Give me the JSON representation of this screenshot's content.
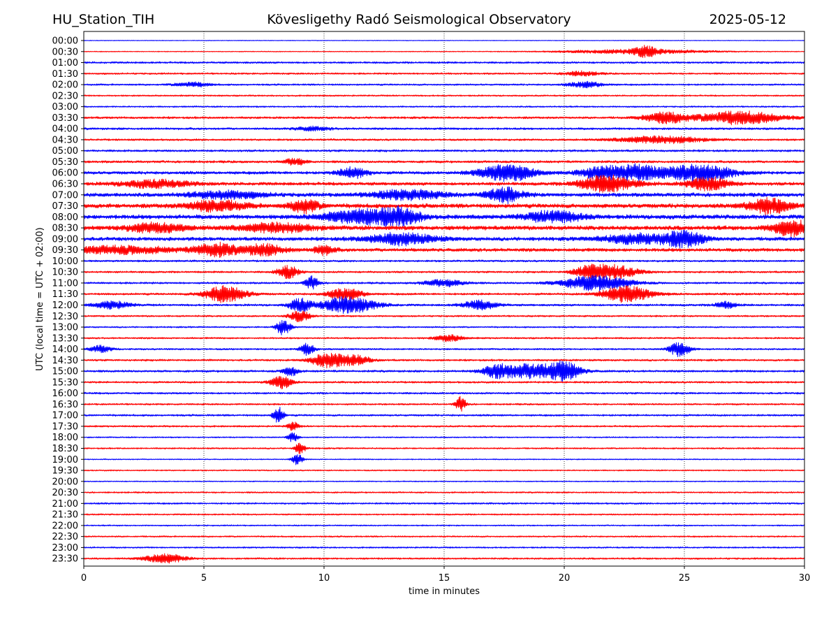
{
  "header": {
    "station": "HU_Station_TIH",
    "observatory": "Kövesligethy Radó Seismological Observatory",
    "date": "2025-05-12"
  },
  "chart_data": {
    "type": "line",
    "title": "Kövesligethy Radó Seismological Observatory",
    "xlabel": "time in minutes",
    "ylabel": "UTC (local time = UTC + 02:00)",
    "xlim": [
      0,
      30
    ],
    "x_ticks": [
      "0",
      "5",
      "10",
      "15",
      "20",
      "25",
      "30"
    ],
    "grid": "vertical dotted lines at each x tick",
    "colors": {
      "even_rows": "#0000ff",
      "odd_rows": "#ff0000"
    },
    "rows": [
      {
        "label": "00:00",
        "color": "blue",
        "noise": 0.15,
        "events": []
      },
      {
        "label": "00:30",
        "color": "red",
        "noise": 0.2,
        "events": [
          [
            23.4,
            2.5,
            0.3
          ],
          [
            23.0,
            1.2,
            2.0
          ]
        ]
      },
      {
        "label": "01:00",
        "color": "blue",
        "noise": 0.45,
        "events": []
      },
      {
        "label": "01:30",
        "color": "red",
        "noise": 0.4,
        "events": [
          [
            20.7,
            1.2,
            0.5
          ]
        ]
      },
      {
        "label": "02:00",
        "color": "blue",
        "noise": 0.4,
        "events": [
          [
            20.9,
            1.5,
            0.5
          ],
          [
            4.5,
            1.2,
            0.5
          ]
        ]
      },
      {
        "label": "02:30",
        "color": "red",
        "noise": 0.35,
        "events": []
      },
      {
        "label": "03:00",
        "color": "blue",
        "noise": 0.35,
        "events": []
      },
      {
        "label": "03:30",
        "color": "red",
        "noise": 0.5,
        "events": [
          [
            24.2,
            3.0,
            0.6
          ],
          [
            27.3,
            3.5,
            1.2
          ]
        ]
      },
      {
        "label": "04:00",
        "color": "blue",
        "noise": 0.5,
        "events": [
          [
            9.5,
            1.0,
            0.5
          ]
        ]
      },
      {
        "label": "04:30",
        "color": "red",
        "noise": 0.45,
        "events": [
          [
            24.0,
            2.0,
            1.2
          ]
        ]
      },
      {
        "label": "05:00",
        "color": "blue",
        "noise": 0.5,
        "events": []
      },
      {
        "label": "05:30",
        "color": "red",
        "noise": 0.55,
        "events": [
          [
            8.8,
            1.8,
            0.3
          ]
        ]
      },
      {
        "label": "06:00",
        "color": "blue",
        "noise": 0.7,
        "events": [
          [
            17.6,
            4.5,
            0.8
          ],
          [
            23.0,
            4.0,
            0.7
          ],
          [
            25.6,
            4.5,
            1.0
          ],
          [
            11.2,
            3.0,
            0.4
          ],
          [
            21.5,
            3.0,
            0.6
          ]
        ]
      },
      {
        "label": "06:30",
        "color": "red",
        "noise": 0.75,
        "events": [
          [
            21.8,
            4.5,
            0.8
          ],
          [
            26.0,
            3.5,
            0.6
          ],
          [
            3.0,
            2.0,
            1.0
          ]
        ]
      },
      {
        "label": "07:00",
        "color": "blue",
        "noise": 0.9,
        "events": [
          [
            17.5,
            4.0,
            0.5
          ],
          [
            13.5,
            2.5,
            1.0
          ],
          [
            6.0,
            2.0,
            1.0
          ]
        ]
      },
      {
        "label": "07:30",
        "color": "red",
        "noise": 1.0,
        "events": [
          [
            5.5,
            3.0,
            0.8
          ],
          [
            9.2,
            3.5,
            0.4
          ],
          [
            28.5,
            4.0,
            0.6
          ]
        ]
      },
      {
        "label": "08:00",
        "color": "blue",
        "noise": 1.0,
        "events": [
          [
            11.5,
            3.5,
            1.0
          ],
          [
            13.2,
            4.0,
            0.6
          ],
          [
            19.6,
            3.0,
            0.8
          ]
        ]
      },
      {
        "label": "08:30",
        "color": "red",
        "noise": 1.0,
        "events": [
          [
            29.5,
            4.0,
            0.6
          ],
          [
            3.0,
            2.5,
            0.8
          ],
          [
            8.0,
            2.5,
            1.0
          ]
        ]
      },
      {
        "label": "09:00",
        "color": "blue",
        "noise": 0.85,
        "events": [
          [
            25.0,
            4.0,
            0.6
          ],
          [
            13.2,
            3.0,
            1.0
          ],
          [
            23.0,
            2.5,
            1.0
          ]
        ]
      },
      {
        "label": "09:30",
        "color": "red",
        "noise": 0.8,
        "events": [
          [
            5.5,
            3.5,
            0.6
          ],
          [
            7.5,
            3.0,
            0.6
          ],
          [
            10.0,
            2.5,
            0.3
          ],
          [
            1.5,
            2.0,
            1.5
          ]
        ]
      },
      {
        "label": "10:00",
        "color": "blue",
        "noise": 0.45,
        "events": []
      },
      {
        "label": "10:30",
        "color": "red",
        "noise": 0.45,
        "events": [
          [
            8.5,
            3.5,
            0.3
          ],
          [
            22.0,
            4.0,
            0.7
          ],
          [
            20.9,
            2.5,
            0.4
          ]
        ]
      },
      {
        "label": "11:00",
        "color": "blue",
        "noise": 0.45,
        "events": [
          [
            9.5,
            3.5,
            0.2
          ],
          [
            21.3,
            4.0,
            1.0
          ],
          [
            15.0,
            1.8,
            0.6
          ]
        ]
      },
      {
        "label": "11:30",
        "color": "red",
        "noise": 0.5,
        "events": [
          [
            5.9,
            4.5,
            0.6
          ],
          [
            10.9,
            3.0,
            0.5
          ],
          [
            22.6,
            4.5,
            0.7
          ]
        ]
      },
      {
        "label": "12:00",
        "color": "blue",
        "noise": 0.5,
        "events": [
          [
            11.0,
            4.5,
            0.8
          ],
          [
            9.0,
            3.5,
            0.3
          ],
          [
            16.5,
            2.5,
            0.5
          ],
          [
            1.2,
            2.0,
            0.5
          ],
          [
            26.7,
            1.8,
            0.3
          ]
        ]
      },
      {
        "label": "12:30",
        "color": "red",
        "noise": 0.4,
        "events": [
          [
            9.0,
            3.0,
            0.3
          ]
        ]
      },
      {
        "label": "13:00",
        "color": "blue",
        "noise": 0.35,
        "events": [
          [
            8.3,
            4.5,
            0.2
          ]
        ]
      },
      {
        "label": "13:30",
        "color": "red",
        "noise": 0.4,
        "events": [
          [
            15.2,
            1.8,
            0.4
          ]
        ]
      },
      {
        "label": "14:00",
        "color": "blue",
        "noise": 0.4,
        "events": [
          [
            9.3,
            3.5,
            0.2
          ],
          [
            24.8,
            4.0,
            0.3
          ],
          [
            0.7,
            1.8,
            0.3
          ]
        ]
      },
      {
        "label": "14:30",
        "color": "red",
        "noise": 0.45,
        "events": [
          [
            10.2,
            4.0,
            0.5
          ],
          [
            11.4,
            2.5,
            0.4
          ]
        ]
      },
      {
        "label": "15:00",
        "color": "blue",
        "noise": 0.5,
        "events": [
          [
            18.7,
            4.0,
            1.0
          ],
          [
            20.1,
            4.0,
            0.4
          ],
          [
            8.6,
            3.0,
            0.2
          ],
          [
            17.2,
            2.5,
            0.4
          ]
        ]
      },
      {
        "label": "15:30",
        "color": "red",
        "noise": 0.45,
        "events": [
          [
            8.2,
            3.5,
            0.3
          ]
        ]
      },
      {
        "label": "16:00",
        "color": "blue",
        "noise": 0.45,
        "events": []
      },
      {
        "label": "16:30",
        "color": "red",
        "noise": 0.4,
        "events": [
          [
            15.7,
            4.0,
            0.15
          ]
        ]
      },
      {
        "label": "17:00",
        "color": "blue",
        "noise": 0.45,
        "events": [
          [
            8.1,
            4.5,
            0.15
          ]
        ]
      },
      {
        "label": "17:30",
        "color": "red",
        "noise": 0.4,
        "events": [
          [
            8.7,
            2.5,
            0.15
          ]
        ]
      },
      {
        "label": "18:00",
        "color": "blue",
        "noise": 0.3,
        "events": [
          [
            8.7,
            2.5,
            0.15
          ]
        ]
      },
      {
        "label": "18:30",
        "color": "red",
        "noise": 0.35,
        "events": [
          [
            9.0,
            3.0,
            0.15
          ]
        ]
      },
      {
        "label": "19:00",
        "color": "blue",
        "noise": 0.25,
        "events": [
          [
            8.9,
            3.0,
            0.15
          ]
        ]
      },
      {
        "label": "19:30",
        "color": "red",
        "noise": 0.3,
        "events": []
      },
      {
        "label": "20:00",
        "color": "blue",
        "noise": 0.25,
        "events": []
      },
      {
        "label": "20:30",
        "color": "red",
        "noise": 0.35,
        "events": []
      },
      {
        "label": "21:00",
        "color": "blue",
        "noise": 0.4,
        "events": []
      },
      {
        "label": "21:30",
        "color": "red",
        "noise": 0.35,
        "events": []
      },
      {
        "label": "22:00",
        "color": "blue",
        "noise": 0.3,
        "events": []
      },
      {
        "label": "22:30",
        "color": "red",
        "noise": 0.35,
        "events": []
      },
      {
        "label": "23:00",
        "color": "blue",
        "noise": 0.35,
        "events": []
      },
      {
        "label": "23:30",
        "color": "red",
        "noise": 0.4,
        "events": [
          [
            3.4,
            2.5,
            0.6
          ]
        ]
      }
    ]
  }
}
